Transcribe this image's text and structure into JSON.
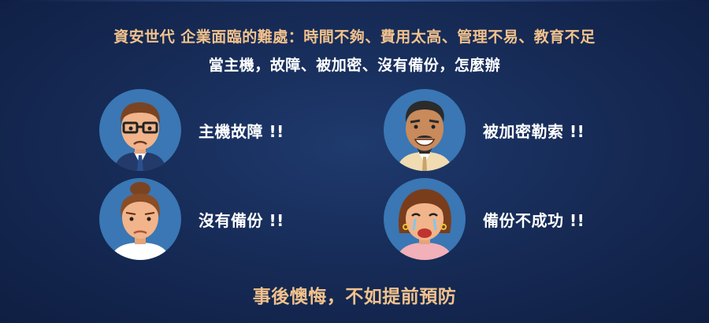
{
  "header": {
    "line1": "資安世代 企業面臨的難處：時間不夠、費用太高、管理不易、教育不足",
    "line2": "當主機，故障、被加密、沒有備份，怎麼辦"
  },
  "cards": [
    {
      "label": "主機故障 !!",
      "icon": "glasses-man-icon"
    },
    {
      "label": "被加密勒索 !!",
      "icon": "smiling-man-icon"
    },
    {
      "label": "沒有備份 !!",
      "icon": "sad-woman-icon"
    },
    {
      "label": "備份不成功 !!",
      "icon": "crying-woman-icon"
    }
  ],
  "footer": {
    "text": "事後懊悔，不如提前預防"
  },
  "colors": {
    "accent": "#f2c28c",
    "avatar_bg": "#3a77b4"
  }
}
